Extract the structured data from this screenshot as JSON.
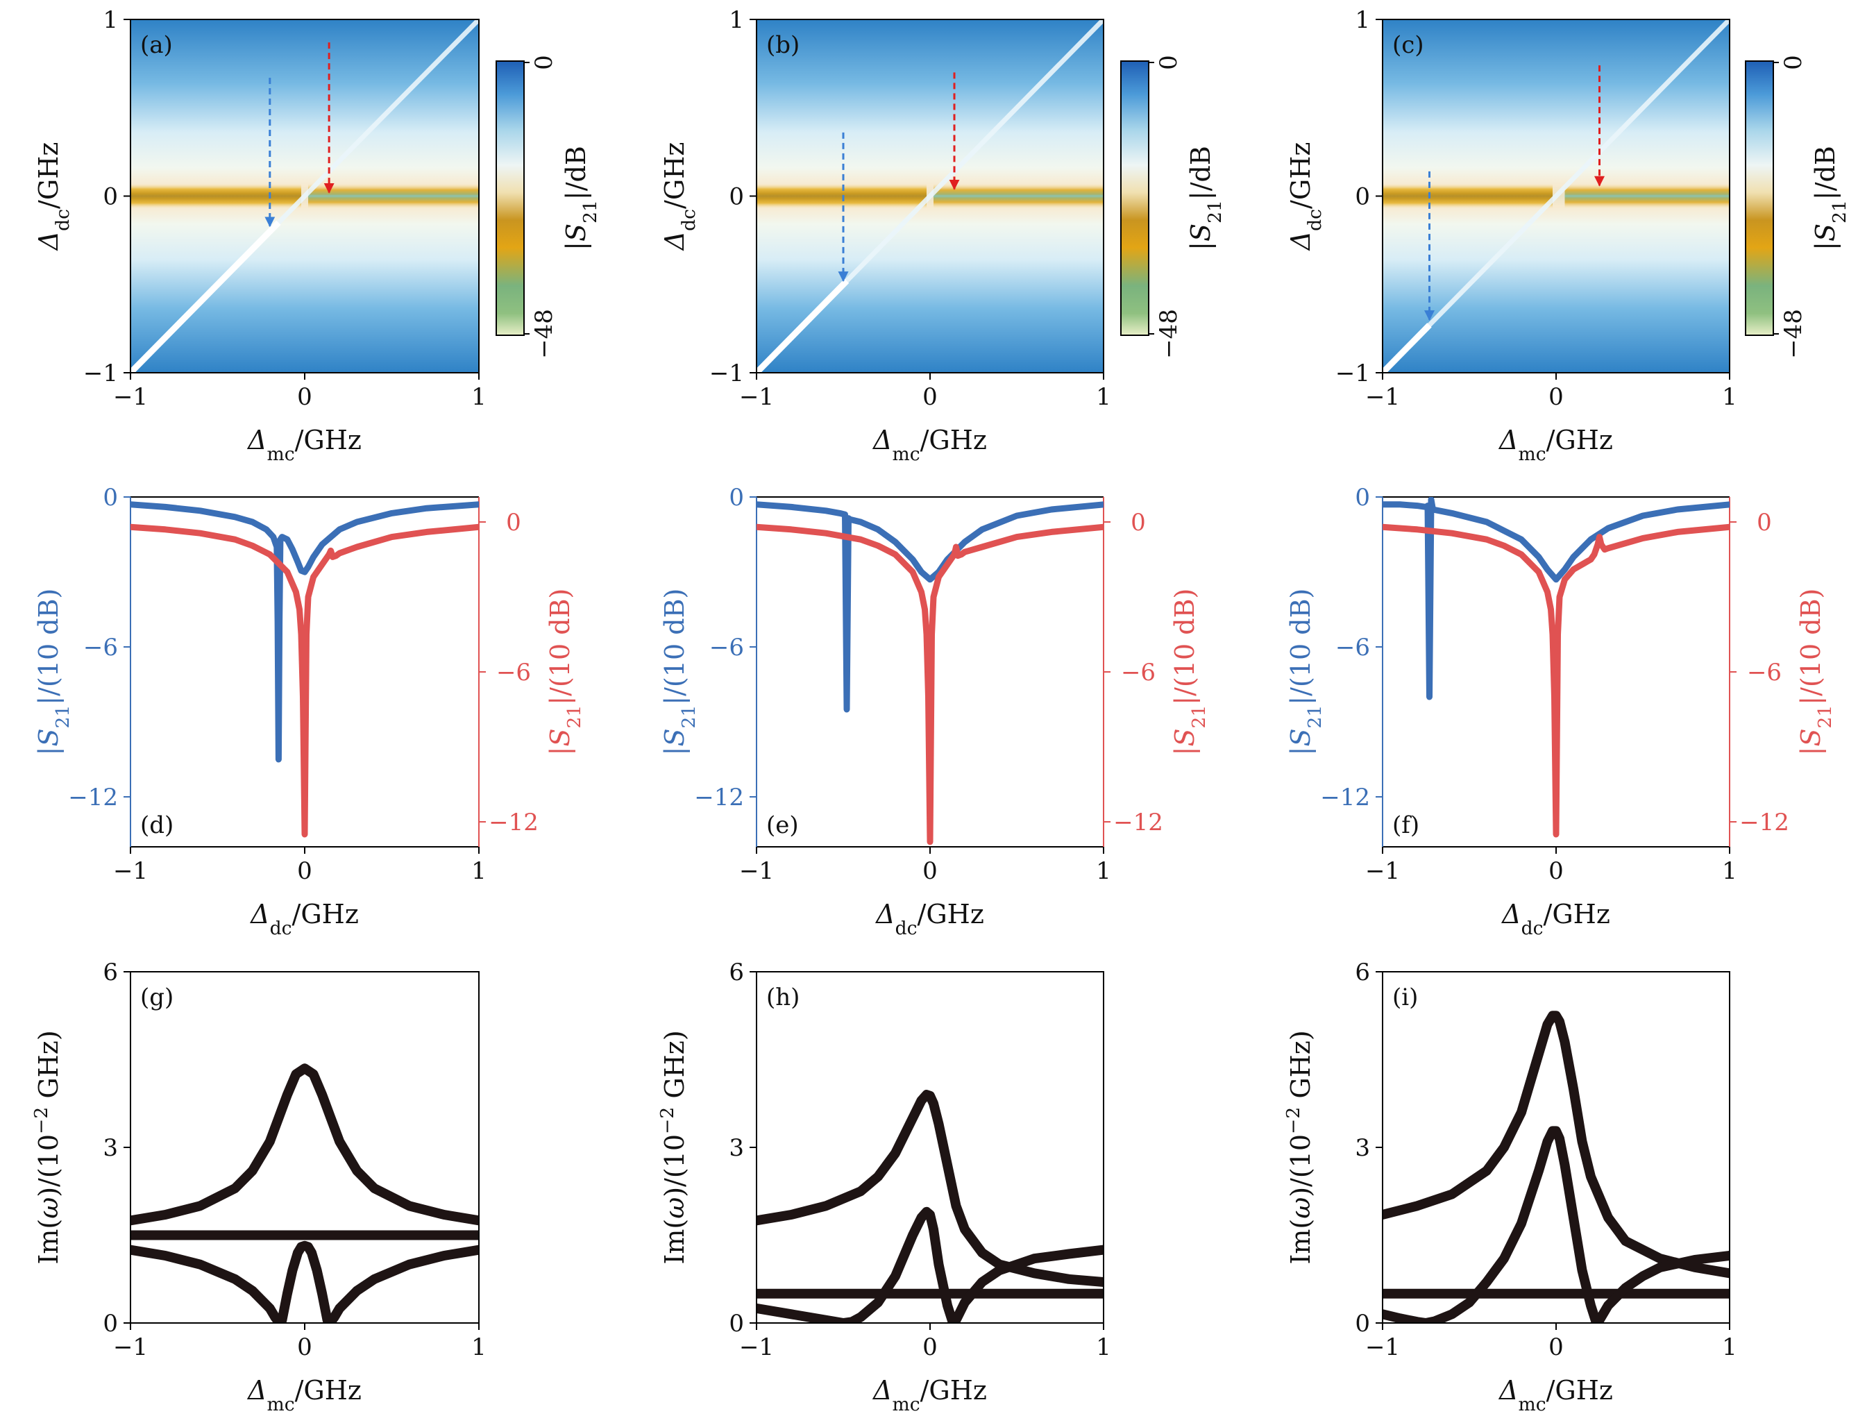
{
  "chart_data": [
    {
      "id": "a",
      "panel_label": "(a)",
      "type": "heatmap",
      "xlabel": "Δmc/GHz",
      "ylabel": "Δdc/GHz",
      "xlim": [
        -1,
        1
      ],
      "ylim": [
        -1,
        1
      ],
      "xticks": [
        "−1",
        "0",
        "1"
      ],
      "yticks": [
        "−1",
        "0",
        "1"
      ],
      "colorbar": {
        "label": "|S21|/dB",
        "min_label": "−48",
        "max_label": "0",
        "range": [
          -48,
          0
        ]
      },
      "features": {
        "diag_dip_end": -0.15,
        "band_start": 0.02
      },
      "arrows": [
        {
          "color": "#3a7fd5",
          "x": -0.2,
          "y_from": 0.67,
          "y_to": -0.17
        },
        {
          "color": "#e01f1f",
          "x": 0.14,
          "y_from": 0.87,
          "y_to": 0.02
        }
      ]
    },
    {
      "id": "b",
      "panel_label": "(b)",
      "type": "heatmap",
      "xlabel": "Δmc/GHz",
      "ylabel": "Δdc/GHz",
      "xlim": [
        -1,
        1
      ],
      "ylim": [
        -1,
        1
      ],
      "xticks": [
        "−1",
        "0",
        "1"
      ],
      "yticks": [
        "−1",
        "0",
        "1"
      ],
      "colorbar": {
        "label": "|S21|/dB",
        "min_label": "−48",
        "max_label": "0",
        "range": [
          -48,
          0
        ]
      },
      "features": {
        "diag_dip_end": -0.48,
        "band_start": 0.02
      },
      "arrows": [
        {
          "color": "#3a7fd5",
          "x": -0.5,
          "y_from": 0.36,
          "y_to": -0.48
        },
        {
          "color": "#e01f1f",
          "x": 0.14,
          "y_from": 0.7,
          "y_to": 0.04
        }
      ]
    },
    {
      "id": "c",
      "panel_label": "(c)",
      "type": "heatmap",
      "xlabel": "Δmc/GHz",
      "ylabel": "Δdc/GHz",
      "xlim": [
        -1,
        1
      ],
      "ylim": [
        -1,
        1
      ],
      "xticks": [
        "−1",
        "0",
        "1"
      ],
      "yticks": [
        "−1",
        "0",
        "1"
      ],
      "colorbar": {
        "label": "|S21|/dB",
        "min_label": "−48",
        "max_label": "0",
        "range": [
          -48,
          0
        ]
      },
      "features": {
        "diag_dip_end": -0.73,
        "band_start": 0.05
      },
      "arrows": [
        {
          "color": "#3a7fd5",
          "x": -0.73,
          "y_from": 0.14,
          "y_to": -0.7
        },
        {
          "color": "#e01f1f",
          "x": 0.25,
          "y_from": 0.74,
          "y_to": 0.06
        }
      ]
    },
    {
      "id": "d",
      "panel_label": "(d)",
      "type": "line",
      "xlabel": "Δdc/GHz",
      "ylabel_left": "|S21|/(10 dB)",
      "ylabel_right": "|S21|/(10 dB)",
      "xlim": [
        -1,
        1
      ],
      "ylim_left": [
        -14,
        0
      ],
      "ylim_right": [
        -13,
        1
      ],
      "xticks": [
        "−1",
        "0",
        "1"
      ],
      "yticks_left": {
        "labels": [
          "0",
          "−6",
          "−12"
        ],
        "values": [
          0,
          -6,
          -12
        ]
      },
      "yticks_right": {
        "labels": [
          "0",
          "−6",
          "−12"
        ],
        "values": [
          0,
          -6,
          -12
        ]
      },
      "series": [
        {
          "axis": "left",
          "color": "#3b6fb6",
          "x": [
            -1.0,
            -0.8,
            -0.6,
            -0.4,
            -0.3,
            -0.22,
            -0.18,
            -0.16,
            -0.155,
            -0.15,
            -0.145,
            -0.14,
            -0.13,
            -0.1,
            -0.07,
            -0.04,
            -0.02,
            0.0,
            0.02,
            0.05,
            0.1,
            0.2,
            0.3,
            0.5,
            0.7,
            1.0
          ],
          "y": [
            -0.3,
            -0.4,
            -0.55,
            -0.8,
            -1.0,
            -1.3,
            -1.6,
            -2.0,
            -5.0,
            -10.5,
            -5.0,
            -1.7,
            -1.6,
            -1.7,
            -2.1,
            -2.6,
            -2.95,
            -3.0,
            -2.8,
            -2.4,
            -1.9,
            -1.3,
            -1.0,
            -0.65,
            -0.45,
            -0.3
          ]
        },
        {
          "axis": "right",
          "color": "#e05252",
          "x": [
            -1.0,
            -0.8,
            -0.6,
            -0.4,
            -0.3,
            -0.2,
            -0.1,
            -0.05,
            -0.03,
            -0.02,
            -0.01,
            0.0,
            0.01,
            0.02,
            0.05,
            0.1,
            0.14,
            0.15,
            0.16,
            0.18,
            0.2,
            0.3,
            0.5,
            0.7,
            1.0
          ],
          "y": [
            -0.2,
            -0.3,
            -0.45,
            -0.7,
            -0.95,
            -1.3,
            -2.0,
            -2.8,
            -3.5,
            -4.5,
            -7.0,
            -12.5,
            -4.5,
            -3.0,
            -2.2,
            -1.7,
            -1.3,
            -1.15,
            -1.4,
            -1.35,
            -1.25,
            -1.0,
            -0.6,
            -0.4,
            -0.2
          ]
        }
      ]
    },
    {
      "id": "e",
      "panel_label": "(e)",
      "type": "line",
      "xlabel": "Δdc/GHz",
      "ylabel_left": "|S21|/(10 dB)",
      "ylabel_right": "|S21|/(10 dB)",
      "xlim": [
        -1,
        1
      ],
      "ylim_left": [
        -14,
        0
      ],
      "ylim_right": [
        -13,
        1
      ],
      "xticks": [
        "−1",
        "0",
        "1"
      ],
      "yticks_left": {
        "labels": [
          "0",
          "−6",
          "−12"
        ],
        "values": [
          0,
          -6,
          -12
        ]
      },
      "yticks_right": {
        "labels": [
          "0",
          "−6",
          "−12"
        ],
        "values": [
          0,
          -6,
          -12
        ]
      },
      "series": [
        {
          "axis": "left",
          "color": "#3b6fb6",
          "x": [
            -1.0,
            -0.8,
            -0.6,
            -0.52,
            -0.49,
            -0.48,
            -0.47,
            -0.46,
            -0.4,
            -0.3,
            -0.2,
            -0.1,
            -0.05,
            0.0,
            0.05,
            0.1,
            0.2,
            0.3,
            0.5,
            0.7,
            1.0
          ],
          "y": [
            -0.3,
            -0.4,
            -0.55,
            -0.65,
            -0.7,
            -8.5,
            -0.85,
            -0.9,
            -1.0,
            -1.3,
            -1.8,
            -2.5,
            -3.0,
            -3.3,
            -3.0,
            -2.5,
            -1.8,
            -1.3,
            -0.75,
            -0.5,
            -0.3
          ]
        },
        {
          "axis": "right",
          "color": "#e05252",
          "x": [
            -1.0,
            -0.8,
            -0.6,
            -0.4,
            -0.3,
            -0.2,
            -0.1,
            -0.05,
            -0.03,
            -0.02,
            -0.01,
            0.0,
            0.01,
            0.02,
            0.05,
            0.1,
            0.14,
            0.15,
            0.16,
            0.18,
            0.2,
            0.3,
            0.5,
            0.7,
            1.0
          ],
          "y": [
            -0.2,
            -0.3,
            -0.45,
            -0.7,
            -0.95,
            -1.3,
            -2.0,
            -2.8,
            -3.5,
            -4.5,
            -7.0,
            -12.8,
            -4.5,
            -3.0,
            -2.2,
            -1.7,
            -1.3,
            -1.0,
            -1.35,
            -1.3,
            -1.2,
            -1.0,
            -0.6,
            -0.4,
            -0.2
          ]
        }
      ]
    },
    {
      "id": "f",
      "panel_label": "(f)",
      "type": "line",
      "xlabel": "Δdc/GHz",
      "ylabel_left": "|S21|/(10 dB)",
      "ylabel_right": "|S21|/(10 dB)",
      "xlim": [
        -1,
        1
      ],
      "ylim_left": [
        -14,
        0
      ],
      "ylim_right": [
        -13,
        1
      ],
      "xticks": [
        "−1",
        "0",
        "1"
      ],
      "yticks_left": {
        "labels": [
          "0",
          "−6",
          "−12"
        ],
        "values": [
          0,
          -6,
          -12
        ]
      },
      "yticks_right": {
        "labels": [
          "0",
          "−6",
          "−12"
        ],
        "values": [
          0,
          -6,
          -12
        ]
      },
      "series": [
        {
          "axis": "left",
          "color": "#3b6fb6",
          "x": [
            -1.0,
            -0.9,
            -0.8,
            -0.75,
            -0.74,
            -0.73,
            -0.72,
            -0.71,
            -0.6,
            -0.4,
            -0.2,
            -0.1,
            -0.05,
            0.0,
            0.05,
            0.1,
            0.2,
            0.3,
            0.5,
            0.7,
            1.0
          ],
          "y": [
            -0.3,
            -0.3,
            -0.35,
            -0.4,
            -0.35,
            -8.0,
            -0.1,
            -0.5,
            -0.65,
            -1.0,
            -1.7,
            -2.4,
            -2.9,
            -3.3,
            -2.9,
            -2.4,
            -1.7,
            -1.25,
            -0.75,
            -0.5,
            -0.3
          ]
        },
        {
          "axis": "right",
          "color": "#e05252",
          "x": [
            -1.0,
            -0.8,
            -0.6,
            -0.4,
            -0.3,
            -0.2,
            -0.1,
            -0.05,
            -0.03,
            -0.02,
            -0.01,
            0.0,
            0.01,
            0.02,
            0.05,
            0.1,
            0.15,
            0.2,
            0.22,
            0.24,
            0.25,
            0.26,
            0.28,
            0.3,
            0.5,
            0.7,
            1.0
          ],
          "y": [
            -0.2,
            -0.3,
            -0.45,
            -0.7,
            -0.95,
            -1.3,
            -2.0,
            -2.8,
            -3.5,
            -4.5,
            -7.0,
            -12.5,
            -4.5,
            -3.0,
            -2.3,
            -1.9,
            -1.7,
            -1.5,
            -1.3,
            -0.9,
            -0.6,
            -0.9,
            -1.1,
            -1.05,
            -0.65,
            -0.4,
            -0.2
          ]
        }
      ]
    },
    {
      "id": "g",
      "panel_label": "(g)",
      "type": "line",
      "xlabel": "Δmc/GHz",
      "ylabel": "Im(ω)/(10−2 GHz)",
      "xlim": [
        -1,
        1
      ],
      "ylim": [
        0,
        6
      ],
      "xticks": [
        "−1",
        "0",
        "1"
      ],
      "yticks": [
        "0",
        "3",
        "6"
      ],
      "series": [
        {
          "color": "#1e1414",
          "x": [
            -1.0,
            -0.8,
            -0.6,
            -0.4,
            -0.3,
            -0.2,
            -0.15,
            -0.1,
            -0.05,
            0.0,
            0.05,
            0.1,
            0.15,
            0.2,
            0.3,
            0.4,
            0.6,
            0.8,
            1.0
          ],
          "y": [
            1.75,
            1.85,
            2.0,
            2.3,
            2.6,
            3.1,
            3.5,
            3.9,
            4.25,
            4.35,
            4.25,
            3.9,
            3.5,
            3.1,
            2.6,
            2.3,
            2.0,
            1.85,
            1.75
          ]
        },
        {
          "color": "#1e1414",
          "x": [
            -1.0,
            1.0
          ],
          "y": [
            1.5,
            1.5
          ]
        },
        {
          "color": "#1e1414",
          "x": [
            -1.0,
            -0.8,
            -0.6,
            -0.4,
            -0.3,
            -0.2,
            -0.17,
            -0.15,
            -0.13,
            -0.1,
            -0.07,
            -0.04,
            -0.02,
            0.0,
            0.02,
            0.04,
            0.07,
            0.1,
            0.13,
            0.15,
            0.17,
            0.2,
            0.3,
            0.4,
            0.6,
            0.8,
            1.0
          ],
          "y": [
            1.25,
            1.15,
            1.0,
            0.75,
            0.55,
            0.25,
            0.1,
            0.02,
            0.05,
            0.5,
            0.9,
            1.2,
            1.3,
            1.32,
            1.3,
            1.2,
            0.9,
            0.5,
            0.05,
            0.02,
            0.1,
            0.25,
            0.55,
            0.75,
            1.0,
            1.15,
            1.25
          ]
        }
      ]
    },
    {
      "id": "h",
      "panel_label": "(h)",
      "type": "line",
      "xlabel": "Δmc/GHz",
      "ylabel": "Im(ω)/(10−2 GHz)",
      "xlim": [
        -1,
        1
      ],
      "ylim": [
        0,
        6
      ],
      "xticks": [
        "−1",
        "0",
        "1"
      ],
      "yticks": [
        "0",
        "3",
        "6"
      ],
      "series": [
        {
          "color": "#1e1414",
          "x": [
            -1.0,
            -0.8,
            -0.6,
            -0.4,
            -0.3,
            -0.2,
            -0.1,
            -0.05,
            -0.02,
            0.0,
            0.02,
            0.05,
            0.1,
            0.15,
            0.2,
            0.3,
            0.4,
            0.6,
            0.8,
            1.0
          ],
          "y": [
            1.75,
            1.85,
            2.0,
            2.25,
            2.5,
            2.9,
            3.5,
            3.8,
            3.9,
            3.88,
            3.75,
            3.4,
            2.7,
            2.0,
            1.6,
            1.2,
            1.0,
            0.85,
            0.75,
            0.7
          ]
        },
        {
          "color": "#1e1414",
          "x": [
            -1.0,
            1.0
          ],
          "y": [
            0.5,
            0.5
          ]
        },
        {
          "color": "#1e1414",
          "x": [
            -1.0,
            -0.8,
            -0.6,
            -0.5,
            -0.45,
            -0.4,
            -0.3,
            -0.2,
            -0.1,
            -0.05,
            -0.02,
            0.0,
            0.02,
            0.05,
            0.1,
            0.13,
            0.15,
            0.2,
            0.3,
            0.4,
            0.5,
            0.6,
            0.8,
            1.0
          ],
          "y": [
            0.25,
            0.15,
            0.05,
            0.0,
            0.02,
            0.1,
            0.35,
            0.8,
            1.5,
            1.8,
            1.9,
            1.85,
            1.6,
            1.0,
            0.3,
            0.02,
            0.05,
            0.35,
            0.7,
            0.9,
            1.0,
            1.1,
            1.18,
            1.25
          ]
        }
      ]
    },
    {
      "id": "i",
      "panel_label": "(i)",
      "type": "line",
      "xlabel": "Δmc/GHz",
      "ylabel": "Im(ω)/(10−2 GHz)",
      "xlim": [
        -1,
        1
      ],
      "ylim": [
        0,
        6
      ],
      "xticks": [
        "−1",
        "0",
        "1"
      ],
      "yticks": [
        "0",
        "3",
        "6"
      ],
      "series": [
        {
          "color": "#1e1414",
          "x": [
            -1.0,
            -0.8,
            -0.6,
            -0.4,
            -0.3,
            -0.2,
            -0.1,
            -0.05,
            -0.02,
            0.0,
            0.02,
            0.05,
            0.1,
            0.15,
            0.2,
            0.3,
            0.4,
            0.6,
            0.8,
            1.0
          ],
          "y": [
            1.85,
            2.0,
            2.2,
            2.6,
            3.0,
            3.6,
            4.6,
            5.1,
            5.25,
            5.25,
            5.15,
            4.8,
            4.0,
            3.1,
            2.5,
            1.8,
            1.4,
            1.1,
            0.95,
            0.85
          ]
        },
        {
          "color": "#1e1414",
          "x": [
            -1.0,
            1.0
          ],
          "y": [
            0.5,
            0.5
          ]
        },
        {
          "color": "#1e1414",
          "x": [
            -1.0,
            -0.9,
            -0.8,
            -0.75,
            -0.7,
            -0.6,
            -0.5,
            -0.4,
            -0.3,
            -0.2,
            -0.1,
            -0.05,
            -0.02,
            0.0,
            0.02,
            0.05,
            0.1,
            0.15,
            0.2,
            0.23,
            0.25,
            0.3,
            0.4,
            0.5,
            0.6,
            0.8,
            1.0
          ],
          "y": [
            0.15,
            0.08,
            0.02,
            0.0,
            0.03,
            0.15,
            0.35,
            0.7,
            1.1,
            1.7,
            2.6,
            3.1,
            3.28,
            3.28,
            3.15,
            2.7,
            1.8,
            0.9,
            0.3,
            0.02,
            0.05,
            0.3,
            0.6,
            0.8,
            0.95,
            1.08,
            1.15
          ]
        }
      ]
    }
  ]
}
